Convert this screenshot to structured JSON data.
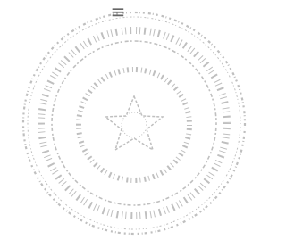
{
  "seal": {
    "top_mark": "≡"
  }
}
